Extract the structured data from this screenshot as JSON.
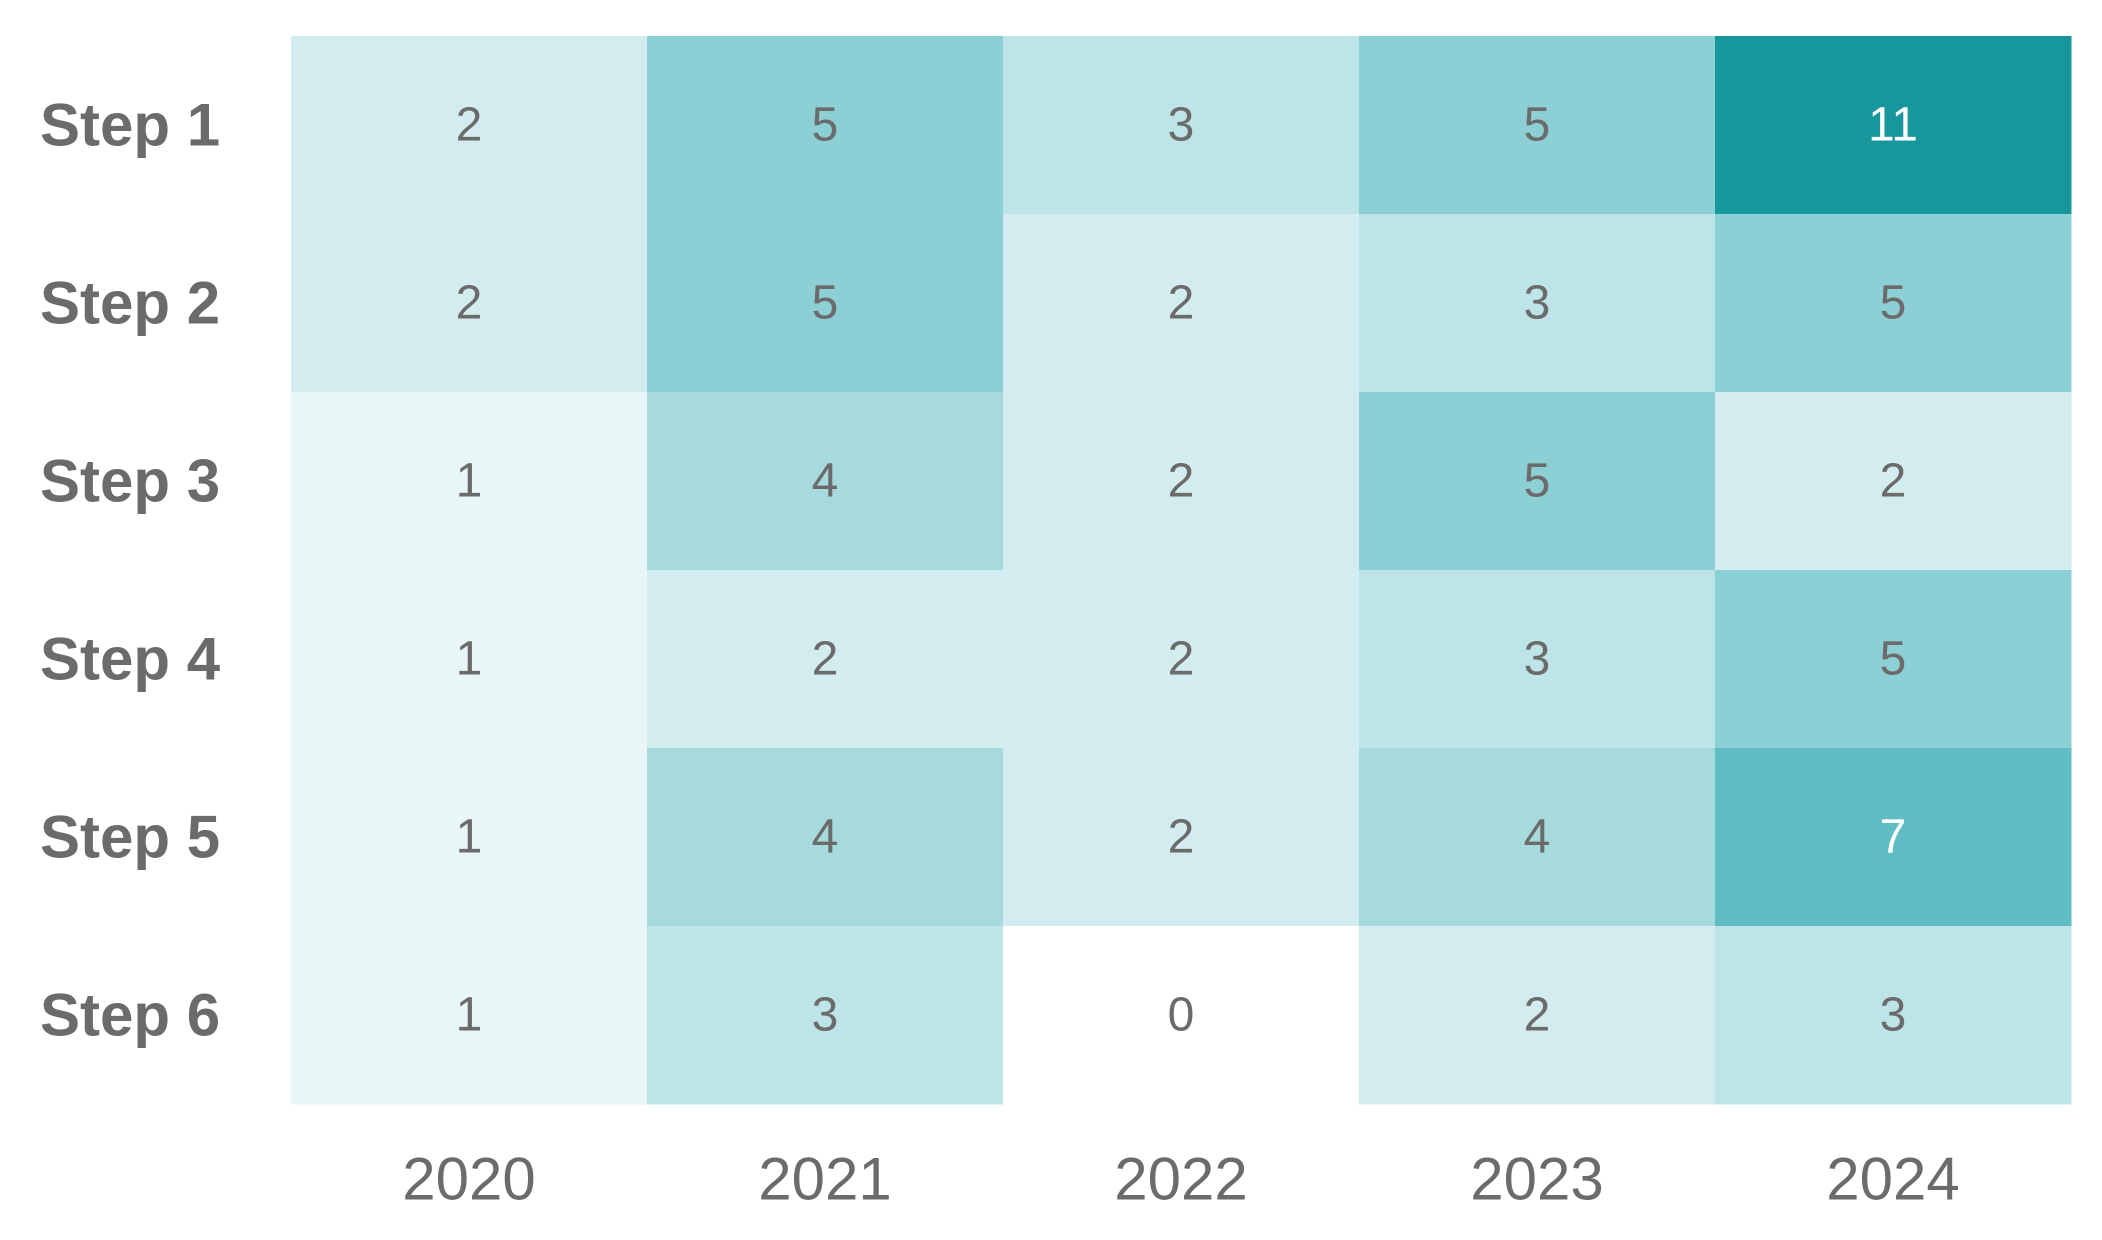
{
  "chart_data": {
    "type": "heatmap",
    "title": "",
    "xlabel": "",
    "ylabel": "",
    "x": [
      "2020",
      "2021",
      "2022",
      "2023",
      "2024"
    ],
    "y": [
      "Step 1",
      "Step 2",
      "Step 3",
      "Step 4",
      "Step 5",
      "Step 6"
    ],
    "values": [
      [
        2,
        5,
        3,
        5,
        11
      ],
      [
        2,
        5,
        2,
        3,
        5
      ],
      [
        1,
        4,
        2,
        5,
        2
      ],
      [
        1,
        2,
        2,
        3,
        5
      ],
      [
        1,
        4,
        2,
        4,
        7
      ],
      [
        1,
        3,
        0,
        2,
        3
      ]
    ],
    "color_scale": {
      "0": "#ffffff",
      "1": "#e9f6f7",
      "2": "#d3ecef",
      "3": "#bde4e6",
      "4": "#a6dadd",
      "5": "#8cd0d5",
      "7": "#5fbdc3",
      "11": "#17969b"
    },
    "label_color_dark": "#6b6b6b",
    "label_color_light": "#ffffff",
    "axis_label_color": "#6b6b6b",
    "legend": "none",
    "grid": false
  }
}
